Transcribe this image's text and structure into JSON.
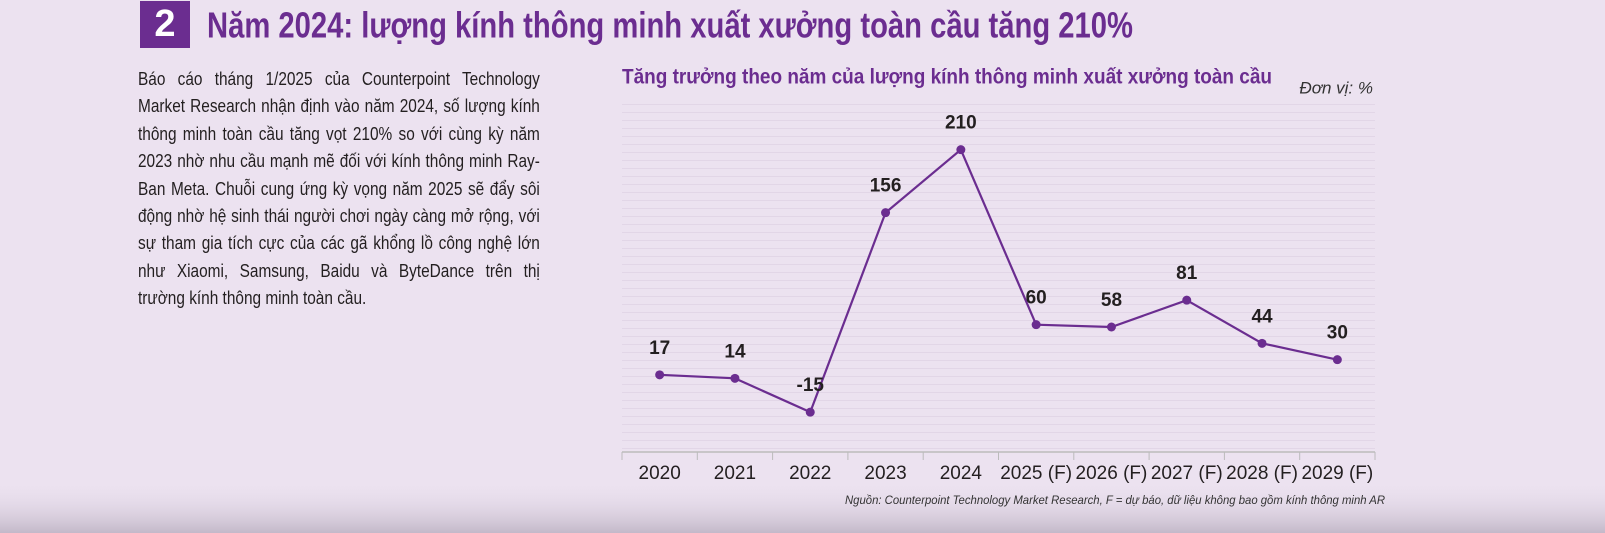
{
  "section_number": "2",
  "heading": "Năm 2024: lượng kính thông minh xuất xưởng toàn cầu tăng 210%",
  "body": "Báo cáo tháng 1/2025 của Counterpoint Technology Market Research nhận định vào năm 2024, số lượng kính thông minh toàn cầu tăng vọt 210% so với cùng kỳ năm 2023 nhờ nhu cầu mạnh mẽ đối với kính thông minh Ray-Ban Meta. Chuỗi cung ứng kỳ vọng năm 2025 sẽ đẩy sôi động nhờ hệ sinh thái người chơi ngày càng mở rộng, với sự tham gia tích cực của các gã khổng lồ công nghệ lớn như Xiaomi, Samsung, Baidu và ByteDance trên thị trường kính thông minh toàn cầu.",
  "chart_data": {
    "type": "line",
    "title": "Tăng trưởng theo năm của lượng kính thông minh xuất xưởng toàn cầu",
    "unit_label": "Đơn vị: %",
    "categories": [
      "2020",
      "2021",
      "2022",
      "2023",
      "2024",
      "2025 (F)",
      "2026 (F)",
      "2027 (F)",
      "2028 (F)",
      "2029 (F)"
    ],
    "values": [
      17,
      14,
      -15,
      156,
      210,
      60,
      58,
      81,
      44,
      30
    ],
    "color": "#6b2d90",
    "ylim": [
      -50,
      250
    ],
    "source": "Nguồn: Counterpoint Technology Market Research, F = dự báo, dữ liệu không bao gồm kính thông minh AR"
  }
}
